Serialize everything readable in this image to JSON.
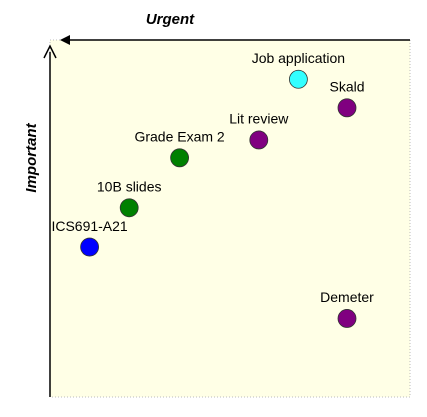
{
  "chart_data": {
    "type": "scatter",
    "xlabel": "Urgent",
    "ylabel": "Important",
    "labels": [
      "Job application",
      "Skald",
      "Lit review",
      "Grade Exam 2",
      "10B slides",
      "ICS691-A21",
      "Demeter"
    ],
    "x": [
      31,
      17.5,
      42,
      64,
      78,
      89,
      17.5
    ],
    "y": [
      89,
      81,
      72,
      67,
      53,
      42,
      22
    ],
    "colors": [
      "#33ffff",
      "#800080",
      "#800080",
      "#008000",
      "#008000",
      "#0000ff",
      "#800080"
    ],
    "xlim": [
      100,
      0
    ],
    "ylim": [
      0,
      100
    ]
  }
}
